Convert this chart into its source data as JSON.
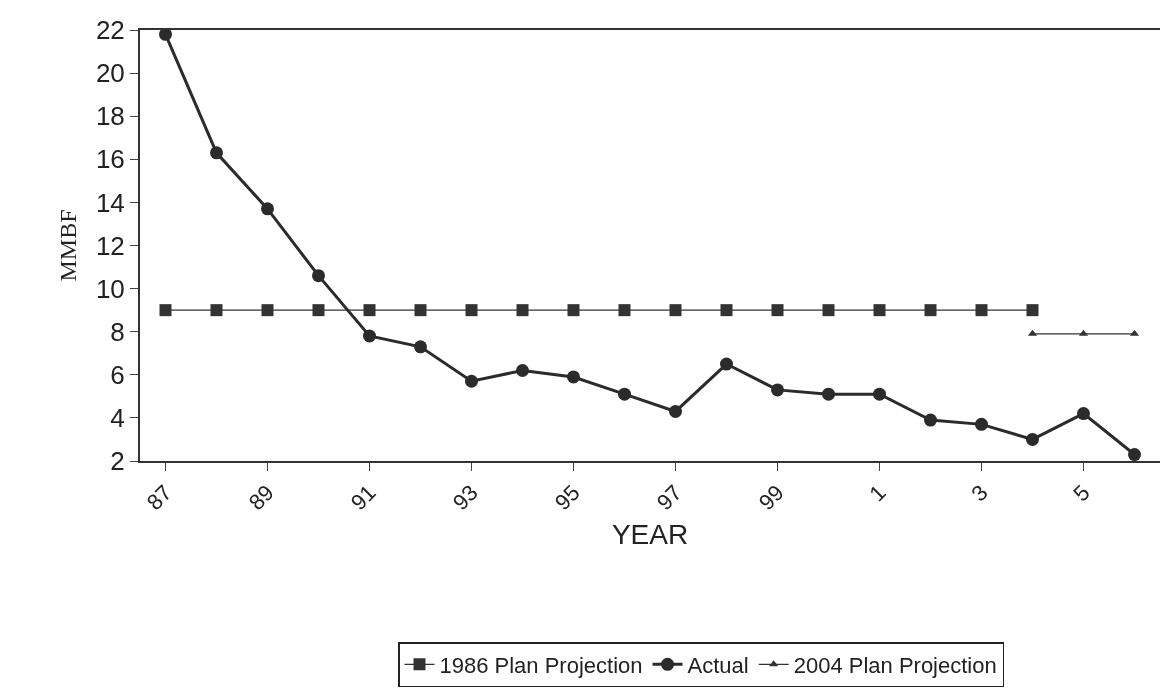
{
  "chart_data": {
    "type": "line",
    "xlabel": "YEAR",
    "ylabel": "MMBF",
    "categories": [
      "87",
      null,
      "89",
      null,
      "91",
      null,
      "93",
      null,
      "95",
      null,
      "97",
      null,
      "99",
      null,
      "1",
      null,
      "3",
      null,
      "5",
      null
    ],
    "series": [
      {
        "name": "1986 Plan Projection",
        "color": "#333333",
        "marker": "square",
        "values": [
          9,
          9,
          9,
          9,
          9,
          9,
          9,
          9,
          9,
          9,
          9,
          9,
          9,
          9,
          9,
          9,
          9,
          9,
          null,
          null
        ]
      },
      {
        "name": "Actual",
        "color": "#2b2b2b",
        "marker": "circle",
        "values": [
          21.8,
          16.3,
          13.7,
          10.6,
          7.8,
          7.3,
          5.7,
          6.2,
          5.9,
          5.1,
          4.3,
          6.5,
          5.3,
          5.1,
          5.1,
          3.9,
          3.7,
          3.0,
          4.2,
          2.3
        ]
      },
      {
        "name": "2004 Plan Projection",
        "color": "#333333",
        "marker": "triangle",
        "values": [
          null,
          null,
          null,
          null,
          null,
          null,
          null,
          null,
          null,
          null,
          null,
          null,
          null,
          null,
          null,
          null,
          null,
          7.9,
          7.9,
          7.9
        ]
      }
    ],
    "ylim": [
      2,
      22
    ],
    "yticks": [
      2,
      4,
      6,
      8,
      10,
      12,
      14,
      16,
      18,
      20,
      22
    ],
    "grid": false,
    "legend": "bottom",
    "line_style": "solid"
  }
}
